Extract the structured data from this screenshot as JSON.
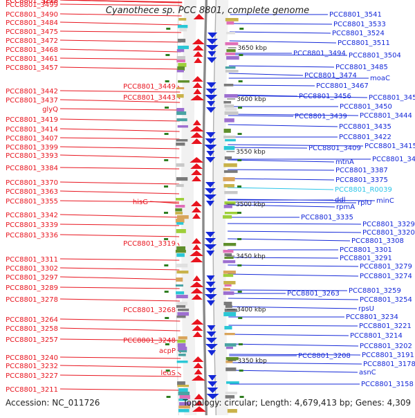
{
  "title": "Cyanothece sp. PCC 8801, complete genome",
  "accession": "Accession: NC_011726",
  "summary": "Topology: circular; Length: 4,679,413 bp; Genes: 4,309",
  "colors": {
    "left_genes": "#e8141e",
    "right_genes": "#1428d8",
    "rna_gene": "#29c4e8",
    "backbone": "#8a8a8a",
    "tick": "#2e7d1f"
  },
  "ruler_ticks": [
    "3650 kbp",
    "3600 kbp",
    "3550 kbp",
    "3500 kbp",
    "3450 kbp",
    "3400 kbp",
    "3350 kbp"
  ],
  "left_labels": [
    "PCC8801_3499",
    "PCC8801_3490",
    "PCC8801_3484",
    "PCC8801_3475",
    "PCC8801_3472",
    "PCC8801_3468",
    "PCC8801_3461",
    "PCC8801_3457",
    "PCC8801_3449",
    "PCC8801_3442",
    "PCC8801_3443",
    "PCC8801_3437",
    "glyQ",
    "PCC8801_3419",
    "PCC8801_3414",
    "PCC8801_3407",
    "PCC8801_3399",
    "PCC8801_3393",
    "PCC8801_3384",
    "PCC8801_3370",
    "PCC8801_3363",
    "PCC8801_3355",
    "hisG",
    "PCC8801_3342",
    "PCC8801_3339",
    "PCC8801_3336",
    "PCC8801_3319",
    "PCC8801_3311",
    "PCC8801_3302",
    "PCC8801_3297",
    "PCC8801_3289",
    "PCC8801_3278",
    "psbI",
    "PCC8801_3268",
    "PCC8801_3264",
    "PCC8801_3258",
    "PCC8801_3257",
    "PCC8801_3248",
    "acpP",
    "PCC8801_3240",
    "PCC8801_3232",
    "leuS",
    "PCC8801_3227",
    "PCC8801_3218",
    "PCC8801_3213",
    "PCC8801_3211"
  ],
  "right_labels": [
    "PCC8801_3541",
    "PCC8801_3533",
    "PCC8801_3524",
    "PCC8801_3511",
    "PCC8801_3494",
    "PCC8801_3504",
    "PCC8801_3485",
    "PCC8801_3474",
    "moaC",
    "PCC8801_3467",
    "PCC8801_3456",
    "PCC8801_3459",
    "PCC8801_3450",
    "PCC8801_3439",
    "PCC8801_3444",
    "PCC8801_3435",
    "PCC8801_3422",
    "PCC8801_3409",
    "PCC8801_3415",
    "mtnA",
    "PCC8801_3400",
    "PCC8801_3387",
    "PCC8801_3375",
    "PCC8801_R0039",
    "ddl",
    "rplU",
    "minC",
    "rpmA",
    "PCC8801_3335",
    "PCC8801_3329",
    "PCC8801_3320",
    "PCC8801_3308",
    "PCC8801_3301",
    "PCC8801_3291",
    "PCC8801_3279",
    "PCC8801_3274",
    "PCC8801_3263",
    "PCC8801_3259",
    "PCC8801_3254",
    "rpsU",
    "PCC8801_3234",
    "PCC8801_3221",
    "PCC8801_3214",
    "PCC8801_3202",
    "PCC8801_3208",
    "PCC8801_3191",
    "PCC8801_3178",
    "asnC",
    "PCC8801_3158"
  ]
}
